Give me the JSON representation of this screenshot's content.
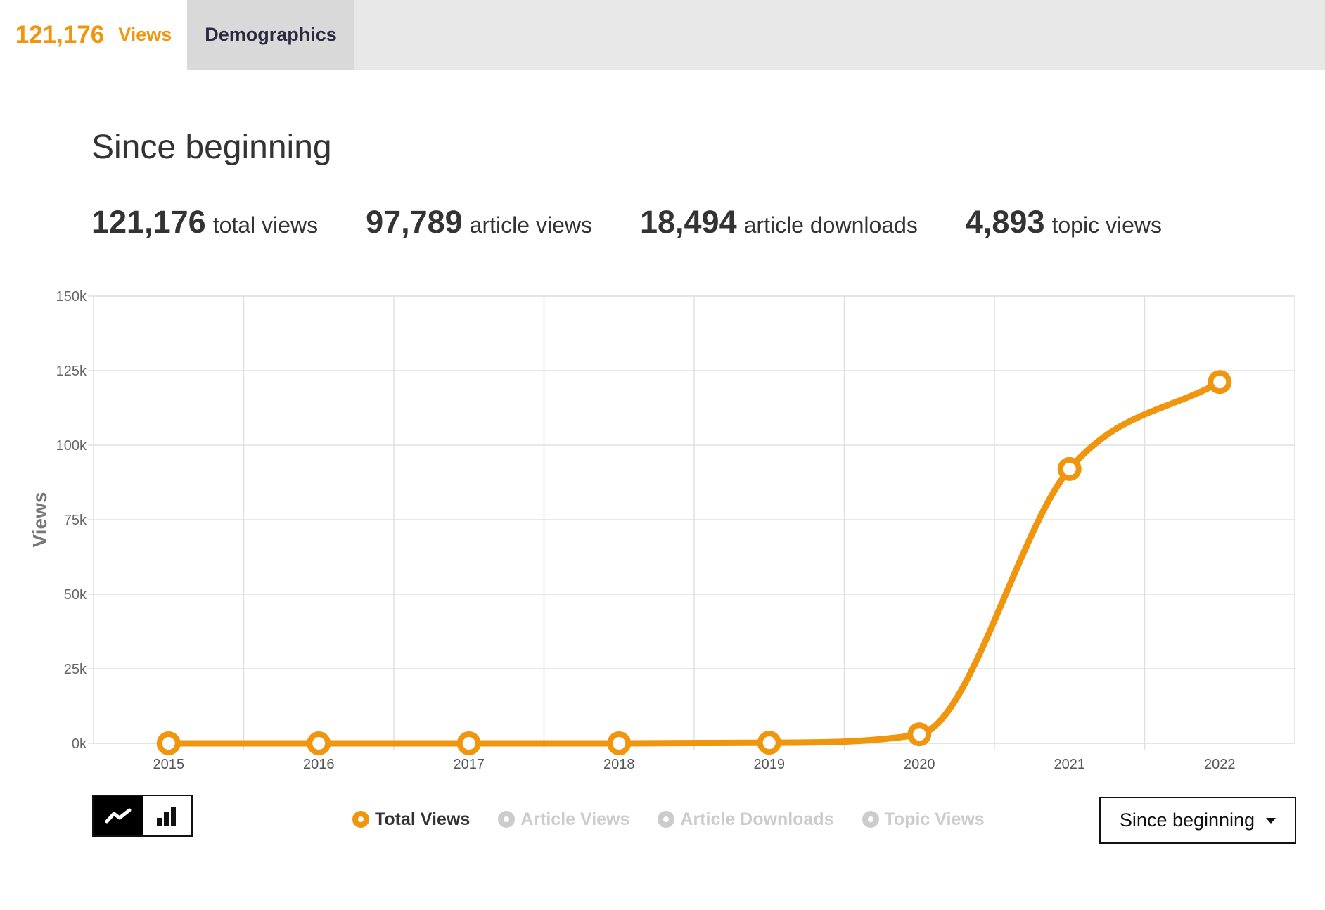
{
  "tabs": {
    "views_count": "121,176",
    "views_label": "Views",
    "demographics_label": "Demographics"
  },
  "section_title": "Since beginning",
  "stats": [
    {
      "value": "121,176",
      "label": "total views"
    },
    {
      "value": "97,789",
      "label": "article views"
    },
    {
      "value": "18,494",
      "label": "article downloads"
    },
    {
      "value": "4,893",
      "label": "topic views"
    }
  ],
  "colors": {
    "accent": "#f0960e",
    "inactive": "#cccccc",
    "grid": "#e0e0e0"
  },
  "chart_toggle": {
    "line_icon": "line-chart-icon",
    "bar_icon": "bar-chart-icon",
    "selected": "line"
  },
  "legend": [
    {
      "name": "Total Views",
      "active": true
    },
    {
      "name": "Article Views",
      "active": false
    },
    {
      "name": "Article Downloads",
      "active": false
    },
    {
      "name": "Topic Views",
      "active": false
    }
  ],
  "range_select": {
    "value": "Since beginning",
    "icon": "caret-down-icon"
  },
  "chart_data": {
    "type": "line",
    "x": [
      "2015",
      "2016",
      "2017",
      "2018",
      "2019",
      "2020",
      "2021",
      "2022"
    ],
    "series": [
      {
        "name": "Total Views",
        "values": [
          0,
          0,
          0,
          0,
          200,
          3000,
          92000,
          121176
        ]
      }
    ],
    "ylabel": "Views",
    "xlabel": "",
    "ylim": [
      0,
      150000
    ],
    "yticks": [
      0,
      25000,
      50000,
      75000,
      100000,
      125000,
      150000
    ],
    "ytick_labels": [
      "0k",
      "25k",
      "50k",
      "75k",
      "100k",
      "125k",
      "150k"
    ],
    "grid": true,
    "smooth": true
  }
}
